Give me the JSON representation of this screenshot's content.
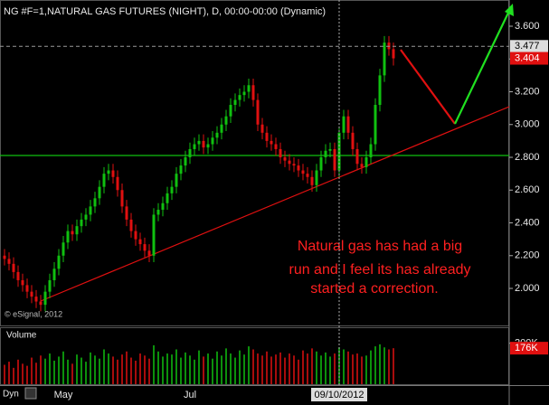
{
  "chart_data": {
    "type": "candlestick",
    "title": "NG #F=1,NATURAL GAS FUTURES (NIGHT), D, 00:00-00:00 (Dynamic)",
    "copyright": "© eSignal, 2012",
    "volume_title": "Volume",
    "mode_label": "Dyn",
    "annotation": [
      "Natural gas has had a big",
      "run and I feel its has already",
      "started a correction."
    ],
    "up_color": "#10c010",
    "down_color": "#e01010",
    "categories": [
      null,
      null,
      null,
      null,
      null,
      null,
      null,
      null,
      null,
      null,
      null,
      null,
      null,
      "May",
      null,
      null,
      null,
      null,
      null,
      null,
      null,
      null,
      null,
      null,
      null,
      null,
      null,
      null,
      null,
      null,
      null,
      null,
      null,
      null,
      null,
      null,
      null,
      null,
      null,
      null,
      null,
      "Jul",
      null,
      null,
      null,
      null,
      null,
      null,
      null,
      null,
      null,
      null,
      null,
      null,
      null,
      null,
      null,
      null,
      null,
      null,
      null,
      null,
      null,
      null,
      null,
      null,
      null,
      null,
      null,
      null,
      null,
      null,
      null,
      null,
      "09/10/2012",
      null,
      null,
      null,
      null,
      null,
      null,
      null,
      null,
      null,
      null,
      null,
      null
    ],
    "open": [
      2.2,
      2.18,
      2.15,
      2.1,
      2.05,
      2.02,
      1.98,
      1.95,
      1.92,
      1.9,
      1.98,
      2.05,
      2.12,
      2.2,
      2.28,
      2.35,
      2.33,
      2.38,
      2.42,
      2.45,
      2.5,
      2.55,
      2.62,
      2.7,
      2.72,
      2.68,
      2.6,
      2.5,
      2.42,
      2.35,
      2.3,
      2.27,
      2.23,
      2.2,
      2.45,
      2.48,
      2.52,
      2.58,
      2.62,
      2.7,
      2.75,
      2.8,
      2.85,
      2.88,
      2.9,
      2.86,
      2.88,
      2.92,
      2.95,
      3.0,
      3.05,
      3.12,
      3.15,
      3.18,
      3.2,
      3.24,
      3.15,
      3.0,
      2.95,
      2.9,
      2.88,
      2.85,
      2.8,
      2.78,
      2.76,
      2.75,
      2.72,
      2.7,
      2.68,
      2.63,
      2.72,
      2.8,
      2.84,
      2.85,
      2.72,
      2.95,
      3.05,
      2.95,
      2.85,
      2.76,
      2.74,
      2.8,
      2.88,
      3.12,
      3.3,
      3.5,
      3.46
    ],
    "high": [
      2.24,
      2.22,
      2.19,
      2.14,
      2.09,
      2.06,
      2.02,
      1.99,
      1.96,
      2.02,
      2.09,
      2.16,
      2.24,
      2.32,
      2.39,
      2.39,
      2.42,
      2.46,
      2.49,
      2.54,
      2.59,
      2.66,
      2.74,
      2.76,
      2.76,
      2.72,
      2.64,
      2.54,
      2.46,
      2.39,
      2.34,
      2.31,
      2.27,
      2.49,
      2.52,
      2.56,
      2.62,
      2.66,
      2.74,
      2.79,
      2.84,
      2.89,
      2.92,
      2.94,
      2.94,
      2.92,
      2.96,
      2.99,
      3.04,
      3.09,
      3.16,
      3.19,
      3.22,
      3.24,
      3.28,
      3.28,
      3.19,
      3.04,
      2.99,
      2.94,
      2.92,
      2.89,
      2.84,
      2.82,
      2.8,
      2.79,
      2.76,
      2.74,
      2.72,
      2.76,
      2.84,
      2.88,
      2.89,
      2.89,
      2.99,
      3.09,
      3.09,
      2.99,
      2.89,
      2.8,
      2.84,
      2.92,
      3.16,
      3.34,
      3.54,
      3.54,
      3.5
    ],
    "low": [
      2.14,
      2.11,
      2.06,
      2.01,
      1.98,
      1.94,
      1.91,
      1.88,
      1.86,
      1.86,
      1.94,
      2.01,
      2.08,
      2.16,
      2.24,
      2.29,
      2.29,
      2.34,
      2.38,
      2.41,
      2.46,
      2.51,
      2.58,
      2.66,
      2.64,
      2.56,
      2.46,
      2.38,
      2.31,
      2.26,
      2.23,
      2.19,
      2.16,
      2.16,
      2.41,
      2.44,
      2.48,
      2.54,
      2.58,
      2.66,
      2.71,
      2.76,
      2.81,
      2.84,
      2.82,
      2.82,
      2.84,
      2.88,
      2.91,
      2.96,
      3.01,
      3.08,
      3.11,
      3.14,
      3.16,
      3.11,
      2.96,
      2.91,
      2.86,
      2.84,
      2.81,
      2.76,
      2.74,
      2.72,
      2.71,
      2.68,
      2.66,
      2.64,
      2.59,
      2.59,
      2.68,
      2.76,
      2.8,
      2.68,
      2.68,
      2.91,
      2.91,
      2.81,
      2.72,
      2.7,
      2.7,
      2.76,
      2.84,
      3.08,
      3.26,
      3.42,
      3.36
    ],
    "close": [
      2.18,
      2.15,
      2.1,
      2.05,
      2.02,
      1.98,
      1.95,
      1.92,
      1.9,
      1.98,
      2.05,
      2.12,
      2.2,
      2.28,
      2.35,
      2.33,
      2.38,
      2.42,
      2.45,
      2.5,
      2.55,
      2.62,
      2.7,
      2.72,
      2.68,
      2.6,
      2.5,
      2.42,
      2.35,
      2.3,
      2.27,
      2.23,
      2.2,
      2.45,
      2.48,
      2.52,
      2.58,
      2.62,
      2.7,
      2.75,
      2.8,
      2.85,
      2.88,
      2.9,
      2.86,
      2.88,
      2.92,
      2.95,
      3.0,
      3.05,
      3.12,
      3.15,
      3.18,
      3.2,
      3.24,
      3.15,
      3.0,
      2.95,
      2.9,
      2.88,
      2.85,
      2.8,
      2.78,
      2.76,
      2.75,
      2.72,
      2.7,
      2.68,
      2.63,
      2.72,
      2.8,
      2.84,
      2.85,
      2.72,
      2.95,
      3.05,
      2.95,
      2.85,
      2.76,
      2.74,
      2.8,
      2.88,
      3.12,
      3.3,
      3.5,
      3.46,
      3.404
    ],
    "volume": [
      95000,
      110000,
      80000,
      120000,
      100000,
      90000,
      130000,
      105000,
      140000,
      125000,
      150000,
      115000,
      135000,
      160000,
      120000,
      100000,
      145000,
      130000,
      110000,
      155000,
      140000,
      125000,
      170000,
      150000,
      135000,
      120000,
      145000,
      160000,
      130000,
      115000,
      150000,
      140000,
      125000,
      190000,
      160000,
      135000,
      150000,
      145000,
      170000,
      130000,
      155000,
      140000,
      120000,
      165000,
      135000,
      150000,
      125000,
      160000,
      140000,
      175000,
      150000,
      130000,
      165000,
      145000,
      185000,
      170000,
      150000,
      140000,
      160000,
      135000,
      145000,
      155000,
      130000,
      150000,
      140000,
      120000,
      165000,
      150000,
      175000,
      160000,
      140000,
      155000,
      135000,
      150000,
      180000,
      170000,
      160000,
      145000,
      150000,
      135000,
      140000,
      165000,
      185000,
      195000,
      180000,
      170000,
      176000
    ],
    "ylim": [
      1.774,
      3.76
    ],
    "yticks": [
      {
        "value": 2.0,
        "label": "2.000"
      },
      {
        "value": 2.2,
        "label": "2.200"
      },
      {
        "value": 2.4,
        "label": "2.400"
      },
      {
        "value": 2.6,
        "label": "2.600"
      },
      {
        "value": 2.8,
        "label": "2.800"
      },
      {
        "value": 3.0,
        "label": "3.000"
      },
      {
        "value": 3.2,
        "label": "3.200"
      },
      {
        "value": 3.4,
        "label": "3.400"
      },
      {
        "value": 3.6,
        "label": "3.600"
      }
    ],
    "high_marker": 3.477,
    "last_price": 3.404,
    "volume_lim": [
      0,
      265000
    ],
    "volume_ticks": [
      {
        "value": 200000,
        "label": "200K"
      }
    ],
    "last_volume_label": {
      "value": 176000,
      "label": "176K"
    }
  }
}
